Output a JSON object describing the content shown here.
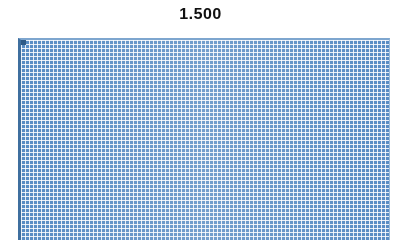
{
  "header": {
    "title": "1.500"
  }
}
